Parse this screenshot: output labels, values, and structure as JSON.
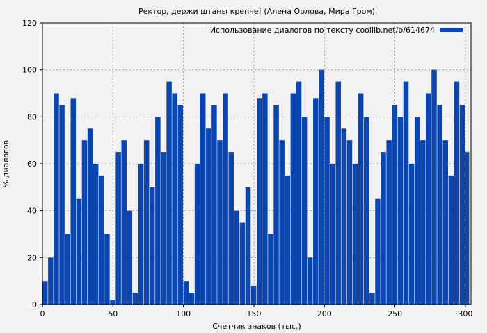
{
  "chart_data": {
    "type": "bar",
    "title": "Ректор, держи штаны крепче! (Алена Орлова, Мира Гром)",
    "xlabel": "Счетчик знаков (тыс.)",
    "ylabel": "% диалогов",
    "legend": "Использование диалогов по тексту coollib.net/b/614674",
    "legend_position": "top-right",
    "grid": true,
    "xlim": [
      0,
      304
    ],
    "ylim": [
      0,
      120
    ],
    "xticks": [
      0,
      50,
      100,
      150,
      200,
      250,
      300
    ],
    "yticks": [
      0,
      20,
      40,
      60,
      80,
      100,
      120
    ],
    "x": [
      0,
      4,
      8,
      12,
      16,
      20,
      24,
      28,
      32,
      36,
      40,
      44,
      48,
      52,
      56,
      60,
      64,
      68,
      72,
      76,
      80,
      84,
      88,
      92,
      96,
      100,
      104,
      108,
      112,
      116,
      120,
      124,
      128,
      132,
      136,
      140,
      144,
      148,
      152,
      156,
      160,
      164,
      168,
      172,
      176,
      180,
      184,
      188,
      192,
      196,
      200,
      204,
      208,
      212,
      216,
      220,
      224,
      228,
      232,
      236,
      240,
      244,
      248,
      252,
      256,
      260,
      264,
      268,
      272,
      276,
      280,
      284,
      288,
      292,
      296,
      300,
      303
    ],
    "values": [
      10,
      20,
      90,
      85,
      30,
      88,
      45,
      70,
      75,
      60,
      55,
      30,
      2,
      65,
      70,
      40,
      5,
      60,
      70,
      50,
      80,
      65,
      95,
      90,
      85,
      10,
      5,
      60,
      90,
      75,
      85,
      70,
      90,
      65,
      40,
      35,
      50,
      8,
      88,
      90,
      30,
      85,
      70,
      55,
      90,
      95,
      80,
      20,
      88,
      100,
      80,
      60,
      95,
      75,
      70,
      60,
      90,
      80,
      5,
      45,
      65,
      70,
      85,
      80,
      95,
      60,
      80,
      70,
      90,
      100,
      85,
      70,
      55,
      95,
      85,
      65,
      5
    ],
    "series_name": "Использование диалогов по тексту coollib.net/b/614674",
    "bar_color": "#0a45b0"
  }
}
